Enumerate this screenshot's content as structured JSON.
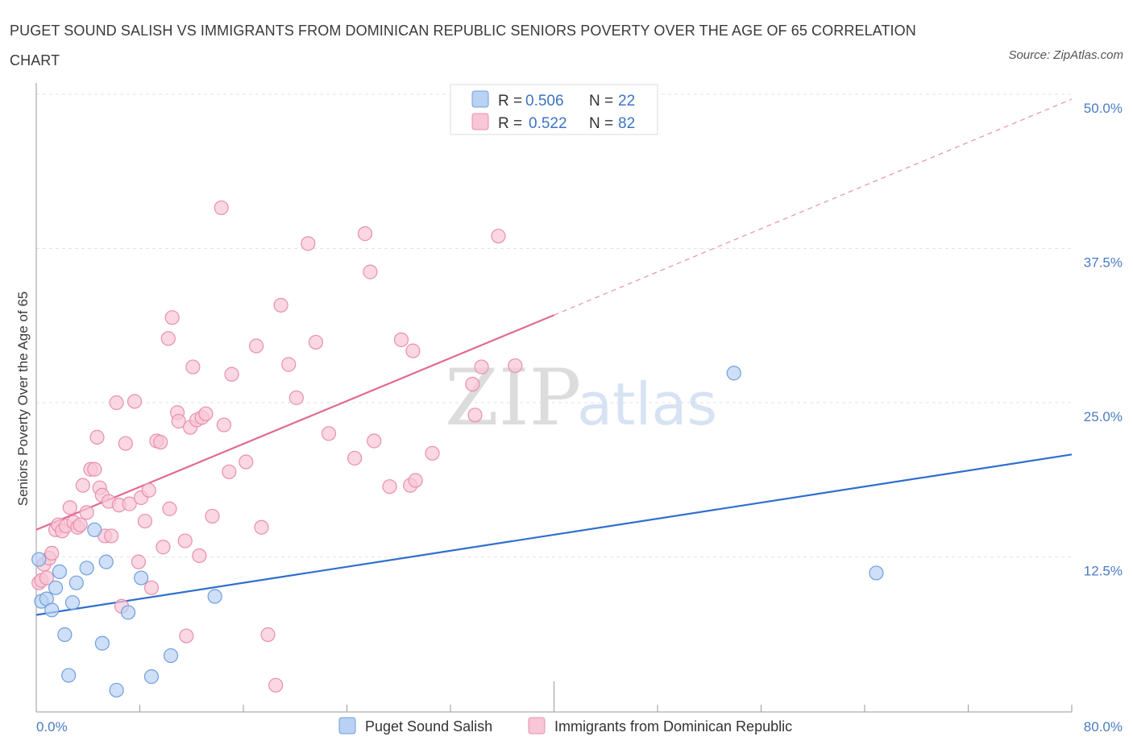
{
  "title": "PUGET SOUND SALISH VS IMMIGRANTS FROM DOMINICAN REPUBLIC SENIORS POVERTY OVER THE AGE OF 65 CORRELATION CHART",
  "source": "Source: ZipAtlas.com",
  "watermark": {
    "zip": "ZIP",
    "atlas": "atlas"
  },
  "colors": {
    "blue_fill": "#b9d1f3",
    "blue_stroke": "#6f9fde",
    "blue_line": "#2f6fce",
    "pink_fill": "#f8c6d6",
    "pink_stroke": "#e98fac",
    "pink_line": "#e06a93",
    "tick": "#4a7cc4",
    "grid": "#e3e3e3"
  },
  "legend": {
    "rows": [
      {
        "r_label": "R =",
        "r_value": "0.506",
        "n_label": "N =",
        "n_value": "22"
      },
      {
        "r_label": "R =",
        "r_value": "0.522",
        "n_label": "N =",
        "n_value": "82"
      }
    ]
  },
  "chart_data": {
    "type": "scatter",
    "title": "PUGET SOUND SALISH VS IMMIGRANTS FROM DOMINICAN REPUBLIC SENIORS POVERTY OVER THE AGE OF 65 CORRELATION CHART",
    "xlabel": "",
    "ylabel": "Seniors Poverty Over the Age of 65",
    "xlim": [
      0,
      80
    ],
    "ylim": [
      0,
      50
    ],
    "x_tick_labels": [
      "0.0%",
      "80.0%"
    ],
    "y_tick_labels": [
      {
        "value": 50,
        "label": "50.0%"
      },
      {
        "value": 37.5,
        "label": "37.5%"
      },
      {
        "value": 25,
        "label": "25.0%"
      },
      {
        "value": 12.5,
        "label": "12.5%"
      }
    ],
    "grid": true,
    "legend_position": "top-center",
    "series": [
      {
        "name": "Puget Sound Salish",
        "color": "#b9d1f3",
        "trend": {
          "x0": 0,
          "y0": 7.8,
          "x1": 80,
          "y1": 20.8
        },
        "points": [
          [
            0.2,
            12.3
          ],
          [
            0.4,
            8.9
          ],
          [
            0.8,
            9.1
          ],
          [
            1.2,
            8.2
          ],
          [
            1.5,
            10.0
          ],
          [
            1.8,
            11.3
          ],
          [
            2.2,
            6.2
          ],
          [
            2.5,
            2.9
          ],
          [
            2.8,
            8.8
          ],
          [
            3.1,
            10.4
          ],
          [
            3.9,
            11.6
          ],
          [
            4.5,
            14.7
          ],
          [
            5.1,
            5.5
          ],
          [
            5.4,
            12.1
          ],
          [
            6.2,
            1.7
          ],
          [
            7.1,
            8.0
          ],
          [
            8.1,
            10.8
          ],
          [
            8.9,
            2.8
          ],
          [
            10.4,
            4.5
          ],
          [
            13.8,
            9.3
          ],
          [
            53.9,
            27.4
          ],
          [
            64.9,
            11.2
          ]
        ]
      },
      {
        "name": "Immigrants from Dominican Republic",
        "color": "#f8c6d6",
        "trend": {
          "x0": 0,
          "y0": 14.7,
          "x1": 40,
          "y1": 32.1
        },
        "trend_extension": {
          "x0": 40,
          "y0": 32.1,
          "x1": 80,
          "y1": 49.6
        },
        "points": [
          [
            0.2,
            10.4
          ],
          [
            0.4,
            10.6
          ],
          [
            0.6,
            11.9
          ],
          [
            0.8,
            10.8
          ],
          [
            1.0,
            12.4
          ],
          [
            1.2,
            12.8
          ],
          [
            1.5,
            14.7
          ],
          [
            1.7,
            15.1
          ],
          [
            2.0,
            14.6
          ],
          [
            2.3,
            15.0
          ],
          [
            2.6,
            16.5
          ],
          [
            2.9,
            15.3
          ],
          [
            3.2,
            14.9
          ],
          [
            3.4,
            15.1
          ],
          [
            3.6,
            18.3
          ],
          [
            3.9,
            16.1
          ],
          [
            4.2,
            19.6
          ],
          [
            4.5,
            19.6
          ],
          [
            4.7,
            22.2
          ],
          [
            4.9,
            18.1
          ],
          [
            5.1,
            17.5
          ],
          [
            5.3,
            14.2
          ],
          [
            5.6,
            17.0
          ],
          [
            5.8,
            14.2
          ],
          [
            6.2,
            25.0
          ],
          [
            6.4,
            16.7
          ],
          [
            6.6,
            8.5
          ],
          [
            6.9,
            21.7
          ],
          [
            7.2,
            16.8
          ],
          [
            7.6,
            25.1
          ],
          [
            7.9,
            12.1
          ],
          [
            8.1,
            17.3
          ],
          [
            8.4,
            15.4
          ],
          [
            8.7,
            17.9
          ],
          [
            8.9,
            10.0
          ],
          [
            9.3,
            21.9
          ],
          [
            9.6,
            21.8
          ],
          [
            9.8,
            13.3
          ],
          [
            10.2,
            30.2
          ],
          [
            10.3,
            16.4
          ],
          [
            10.5,
            31.9
          ],
          [
            10.9,
            24.2
          ],
          [
            11.0,
            23.5
          ],
          [
            11.5,
            13.8
          ],
          [
            11.6,
            6.1
          ],
          [
            11.9,
            23.0
          ],
          [
            12.1,
            27.9
          ],
          [
            12.4,
            23.6
          ],
          [
            12.6,
            12.6
          ],
          [
            12.8,
            23.8
          ],
          [
            13.1,
            24.1
          ],
          [
            13.6,
            15.8
          ],
          [
            14.3,
            40.8
          ],
          [
            14.5,
            23.2
          ],
          [
            14.9,
            19.4
          ],
          [
            15.1,
            27.3
          ],
          [
            16.2,
            20.2
          ],
          [
            17.0,
            29.6
          ],
          [
            17.4,
            14.9
          ],
          [
            17.9,
            6.2
          ],
          [
            18.5,
            2.1
          ],
          [
            18.9,
            32.9
          ],
          [
            19.5,
            28.1
          ],
          [
            20.1,
            25.4
          ],
          [
            21.0,
            37.9
          ],
          [
            21.6,
            29.9
          ],
          [
            22.6,
            22.5
          ],
          [
            24.6,
            20.5
          ],
          [
            25.4,
            38.7
          ],
          [
            25.8,
            35.6
          ],
          [
            26.1,
            21.9
          ],
          [
            27.3,
            18.2
          ],
          [
            28.2,
            30.1
          ],
          [
            28.9,
            18.3
          ],
          [
            29.1,
            29.2
          ],
          [
            29.3,
            18.7
          ],
          [
            30.6,
            20.9
          ],
          [
            33.7,
            26.5
          ],
          [
            33.9,
            24.0
          ],
          [
            34.4,
            27.9
          ],
          [
            35.7,
            38.5
          ],
          [
            37.0,
            28.0
          ]
        ]
      }
    ]
  }
}
